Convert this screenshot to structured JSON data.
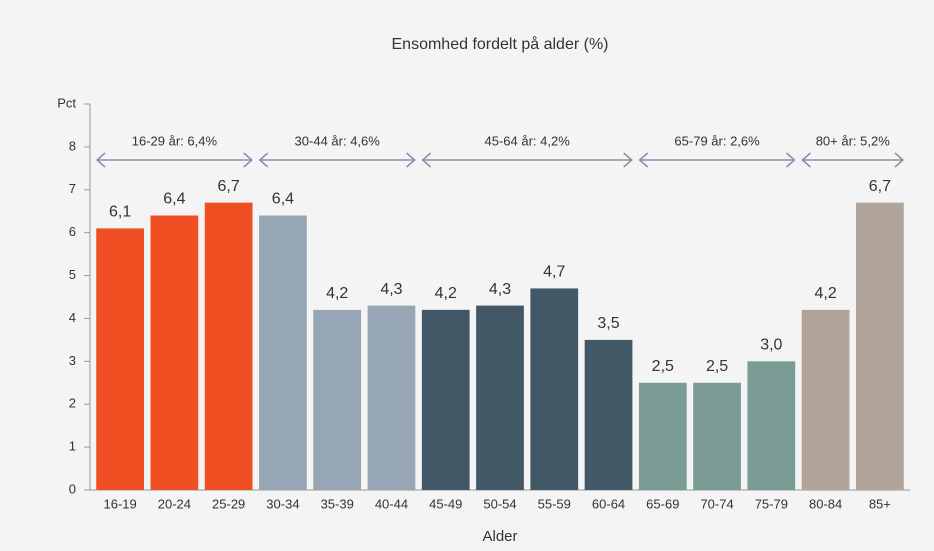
{
  "chart_data": {
    "type": "bar",
    "title": "Ensomhed fordelt på alder (%)",
    "x_label": "Alder",
    "categories": [
      "16-19",
      "20-24",
      "25-29",
      "30-34",
      "35-39",
      "40-44",
      "45-49",
      "50-54",
      "55-59",
      "60-64",
      "65-69",
      "70-74",
      "75-79",
      "80-84",
      "85+"
    ],
    "values": [
      6.1,
      6.4,
      6.7,
      6.4,
      4.2,
      4.3,
      4.2,
      4.3,
      4.7,
      3.5,
      2.5,
      2.5,
      3.0,
      4.2,
      6.7
    ],
    "value_labels": [
      "6,1",
      "6,4",
      "6,7",
      "6,4",
      "4,2",
      "4,3",
      "4,2",
      "4,3",
      "4,7",
      "3,5",
      "2,5",
      "2,5",
      "3,0",
      "4,2",
      "6,7"
    ],
    "groups": [
      {
        "label": "16-29 år: 6,4%",
        "start": "16-19",
        "end": "25-29",
        "color": "#f04e23"
      },
      {
        "label": "30-44 år: 4,6%",
        "start": "30-34",
        "end": "40-44",
        "color": "#97a6b4"
      },
      {
        "label": "45-64 år: 4,2%",
        "start": "45-49",
        "end": "60-64",
        "color": "#435867"
      },
      {
        "label": "65-79 år: 2,6%",
        "start": "65-69",
        "end": "75-79",
        "color": "#7a9c94"
      },
      {
        "label": "80+ år: 5,2%",
        "start": "80-84",
        "end": "85+",
        "color": "#b0a49b"
      }
    ],
    "ylim": [
      0,
      9
    ],
    "yticks": [
      0,
      1,
      2,
      3,
      4,
      5,
      6,
      7,
      8,
      {
        "value": 9,
        "label": "Pct"
      }
    ],
    "grid": false
  }
}
